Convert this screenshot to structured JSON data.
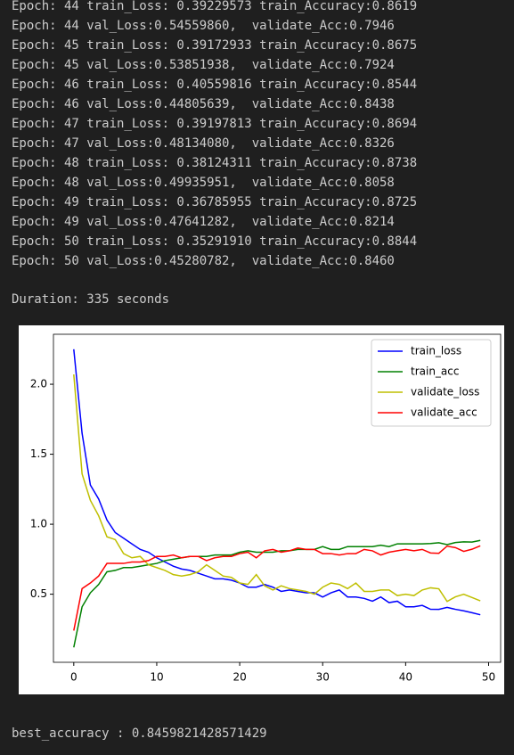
{
  "log": [
    "Epoch: 44 train_Loss: 0.39229573 train_Accuracy:0.8619",
    "Epoch: 44 val_Loss:0.54559860,  validate_Acc:0.7946",
    "Epoch: 45 train_Loss: 0.39172933 train_Accuracy:0.8675",
    "Epoch: 45 val_Loss:0.53851938,  validate_Acc:0.7924",
    "Epoch: 46 train_Loss: 0.40559816 train_Accuracy:0.8544",
    "Epoch: 46 val_Loss:0.44805639,  validate_Acc:0.8438",
    "Epoch: 47 train_Loss: 0.39197813 train_Accuracy:0.8694",
    "Epoch: 47 val_Loss:0.48134080,  validate_Acc:0.8326",
    "Epoch: 48 train_Loss: 0.38124311 train_Accuracy:0.8738",
    "Epoch: 48 val_Loss:0.49935951,  validate_Acc:0.8058",
    "Epoch: 49 train_Loss: 0.36785955 train_Accuracy:0.8725",
    "Epoch: 49 val_Loss:0.47641282,  validate_Acc:0.8214",
    "Epoch: 50 train_Loss: 0.35291910 train_Accuracy:0.8844",
    "Epoch: 50 val_Loss:0.45280782,  validate_Acc:0.8460"
  ],
  "duration": "Duration: 335 seconds",
  "best": "best_accuracy : 0.8459821428571429",
  "chart_data": {
    "type": "line",
    "x": [
      0,
      1,
      2,
      3,
      4,
      5,
      6,
      7,
      8,
      9,
      10,
      11,
      12,
      13,
      14,
      15,
      16,
      17,
      18,
      19,
      20,
      21,
      22,
      23,
      24,
      25,
      26,
      27,
      28,
      29,
      30,
      31,
      32,
      33,
      34,
      35,
      36,
      37,
      38,
      39,
      40,
      41,
      42,
      43,
      44,
      45,
      46,
      47,
      48,
      49
    ],
    "xlim": [
      -2.45,
      51.45
    ],
    "xticks": [
      0,
      10,
      20,
      30,
      40,
      50
    ],
    "ylim": [
      0.0135,
      2.357
    ],
    "yticks": [
      0.5,
      {
        "value": 1,
        "label": "1.0"
      },
      1.5,
      {
        "value": 2,
        "label": "2.0"
      }
    ],
    "legend": "upper right",
    "series": [
      {
        "name": "train_loss",
        "color": "#0000ff",
        "values": [
          2.25,
          1.65,
          1.28,
          1.18,
          1.03,
          0.94,
          0.9,
          0.86,
          0.82,
          0.8,
          0.76,
          0.73,
          0.7,
          0.68,
          0.67,
          0.65,
          0.63,
          0.61,
          0.61,
          0.6,
          0.58,
          0.55,
          0.55,
          0.57,
          0.55,
          0.52,
          0.53,
          0.52,
          0.51,
          0.51,
          0.48,
          0.51,
          0.53,
          0.48,
          0.48,
          0.47,
          0.45,
          0.48,
          0.44,
          0.45,
          0.41,
          0.41,
          0.42,
          0.39229573,
          0.39172933,
          0.40559816,
          0.39197813,
          0.38124311,
          0.36785955,
          0.3529191
        ]
      },
      {
        "name": "train_acc",
        "color": "#008000",
        "values": [
          0.12,
          0.41,
          0.51,
          0.57,
          0.66,
          0.67,
          0.69,
          0.69,
          0.7,
          0.71,
          0.72,
          0.74,
          0.75,
          0.76,
          0.77,
          0.77,
          0.77,
          0.78,
          0.78,
          0.78,
          0.8,
          0.81,
          0.8,
          0.8,
          0.8,
          0.81,
          0.81,
          0.82,
          0.82,
          0.82,
          0.84,
          0.82,
          0.82,
          0.84,
          0.84,
          0.84,
          0.84,
          0.85,
          0.84,
          0.86,
          0.86,
          0.86,
          0.86,
          0.8619,
          0.8675,
          0.8544,
          0.8694,
          0.8738,
          0.8725,
          0.8844
        ]
      },
      {
        "name": "validate_loss",
        "color": "#bfbf00",
        "values": [
          2.07,
          1.36,
          1.17,
          1.06,
          0.91,
          0.89,
          0.79,
          0.76,
          0.77,
          0.71,
          0.69,
          0.67,
          0.64,
          0.63,
          0.64,
          0.66,
          0.71,
          0.67,
          0.63,
          0.62,
          0.58,
          0.57,
          0.64,
          0.56,
          0.53,
          0.56,
          0.54,
          0.53,
          0.52,
          0.5,
          0.55,
          0.58,
          0.57,
          0.54,
          0.58,
          0.52,
          0.52,
          0.53,
          0.53,
          0.49,
          0.5,
          0.49,
          0.53,
          0.5455986,
          0.53851938,
          0.44805639,
          0.4813408,
          0.49935951,
          0.47641282,
          0.45280782
        ]
      },
      {
        "name": "validate_acc",
        "color": "#ff0000",
        "values": [
          0.24,
          0.54,
          0.58,
          0.63,
          0.72,
          0.72,
          0.72,
          0.73,
          0.73,
          0.74,
          0.77,
          0.77,
          0.78,
          0.76,
          0.77,
          0.77,
          0.74,
          0.76,
          0.77,
          0.77,
          0.79,
          0.8,
          0.76,
          0.81,
          0.82,
          0.8,
          0.81,
          0.83,
          0.82,
          0.82,
          0.79,
          0.79,
          0.78,
          0.79,
          0.79,
          0.82,
          0.81,
          0.78,
          0.8,
          0.81,
          0.82,
          0.81,
          0.82,
          0.7946,
          0.7924,
          0.8438,
          0.8326,
          0.8058,
          0.8214,
          0.846
        ]
      }
    ]
  }
}
